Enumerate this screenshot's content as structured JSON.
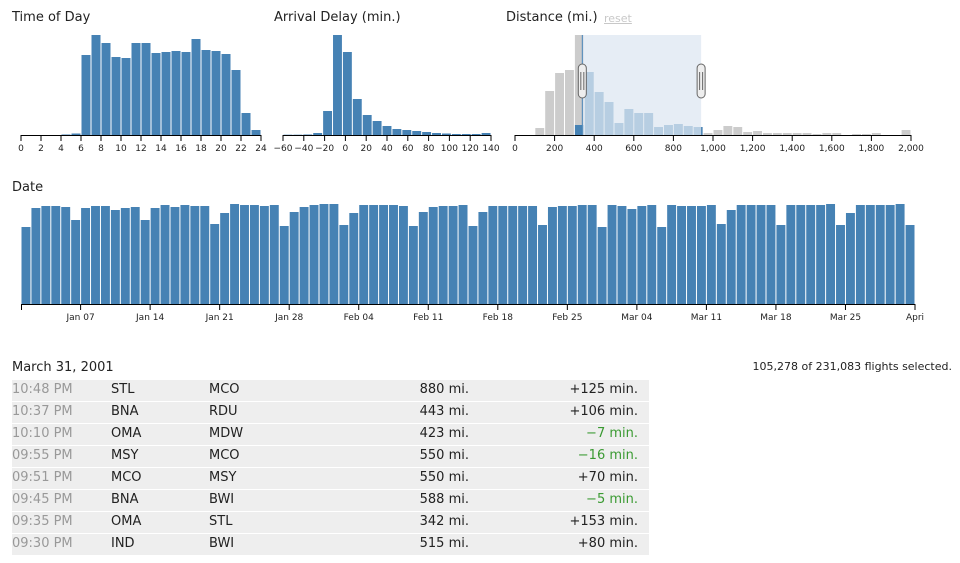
{
  "charts": {
    "time_of_day": {
      "title": "Time of Day"
    },
    "arrival_delay": {
      "title": "Arrival Delay (min.)"
    },
    "distance": {
      "title": "Distance (mi.)",
      "reset_label": "reset"
    },
    "date": {
      "title": "Date"
    }
  },
  "chart_data": [
    {
      "type": "bar",
      "title": "Time of Day",
      "x_range": [
        0,
        24
      ],
      "tick_labels": [
        "0",
        "2",
        "4",
        "6",
        "8",
        "10",
        "12",
        "14",
        "16",
        "18",
        "20",
        "22",
        "24"
      ],
      "bin_width": 1,
      "x": [
        0,
        1,
        2,
        3,
        4,
        5,
        6,
        7,
        8,
        9,
        10,
        11,
        12,
        13,
        14,
        15,
        16,
        17,
        18,
        19,
        20,
        21,
        22,
        23
      ],
      "values": [
        0,
        0,
        0,
        0,
        0.5,
        1.5,
        80,
        100,
        92,
        78,
        77,
        92,
        92,
        82,
        83,
        84,
        83,
        96,
        85,
        84,
        81,
        65,
        22,
        5
      ],
      "y_range": [
        0,
        100
      ],
      "grid": false
    },
    {
      "type": "bar",
      "title": "Arrival Delay (min.)",
      "x_range": [
        -60,
        150
      ],
      "tick_labels": [
        "−60",
        "−40",
        "−20",
        "0",
        "20",
        "40",
        "60",
        "80",
        "100",
        "120",
        "140"
      ],
      "bin_width": 10,
      "x": [
        -60,
        -50,
        -40,
        -30,
        -20,
        -10,
        0,
        10,
        20,
        30,
        40,
        50,
        60,
        70,
        80,
        90,
        100,
        110,
        120,
        130,
        140
      ],
      "values": [
        0.3,
        0.3,
        0.5,
        2,
        24,
        100,
        83,
        36,
        20,
        14,
        9,
        6,
        5,
        4,
        3,
        2,
        1.5,
        1,
        1,
        1,
        2
      ],
      "y_range": [
        0,
        100
      ],
      "grid": false
    },
    {
      "type": "bar",
      "title": "Distance (mi.)",
      "x_range": [
        0,
        2000
      ],
      "tick_labels": [
        "0",
        "200",
        "400",
        "600",
        "800",
        "1,000",
        "1,200",
        "1,400",
        "1,600",
        "1,800",
        "2,000"
      ],
      "bin_width": 50,
      "x": [
        0,
        50,
        100,
        150,
        200,
        250,
        300,
        350,
        400,
        450,
        500,
        550,
        600,
        650,
        700,
        750,
        800,
        850,
        900,
        950,
        1000,
        1050,
        1100,
        1150,
        1200,
        1250,
        1300,
        1350,
        1400,
        1450,
        1500,
        1550,
        1600,
        1650,
        1700,
        1750,
        1800,
        1850,
        1900,
        1950
      ],
      "values": [
        0,
        0,
        7,
        44,
        62,
        65,
        100,
        63,
        43,
        33,
        12,
        26,
        22,
        22,
        8,
        10,
        11,
        9,
        8,
        2,
        5,
        9,
        8,
        3,
        4,
        2,
        2,
        2,
        2,
        2,
        1,
        2,
        2,
        0,
        1,
        1,
        2,
        0,
        0,
        5
      ],
      "selected_values": [
        0,
        0,
        0,
        0,
        0,
        0,
        10,
        63,
        43,
        33,
        12,
        26,
        22,
        22,
        8,
        10,
        11,
        9,
        8,
        0,
        0,
        0,
        0,
        0,
        0,
        0,
        0,
        0,
        0,
        0,
        0,
        0,
        0,
        0,
        0,
        0,
        0,
        0,
        0,
        0
      ],
      "brush_range": [
        340,
        940
      ],
      "y_range": [
        0,
        100
      ],
      "grid": false
    },
    {
      "type": "bar",
      "title": "Date",
      "x_start": "2001-01-01",
      "x_range": [
        "2001-01-01",
        "2001-04-01"
      ],
      "tick_labels": [
        "Jan 07",
        "Jan 14",
        "Jan 21",
        "Jan 28",
        "Feb 04",
        "Feb 11",
        "Feb 18",
        "Feb 25",
        "Mar 04",
        "Mar 11",
        "Mar 18",
        "Mar 25",
        "Apri"
      ],
      "values": [
        77,
        96,
        98,
        98,
        97,
        84,
        96,
        98,
        98,
        94,
        96,
        97,
        84,
        96,
        99,
        97,
        99,
        98,
        98,
        80,
        91,
        100,
        99,
        99,
        98,
        99,
        78,
        92,
        97,
        99,
        100,
        100,
        79,
        91,
        99,
        99,
        99,
        99,
        98,
        78,
        92,
        97,
        98,
        98,
        99,
        78,
        92,
        98,
        98,
        98,
        98,
        98,
        79,
        97,
        98,
        98,
        99,
        99,
        77,
        99,
        98,
        95,
        98,
        99,
        77,
        99,
        98,
        98,
        98,
        99,
        80,
        94,
        99,
        99,
        99,
        99,
        79,
        99,
        99,
        99,
        99,
        100,
        79,
        91,
        99,
        99,
        99,
        99,
        100,
        79
      ],
      "y_range": [
        0,
        100
      ],
      "grid": false
    }
  ],
  "table": {
    "date_heading": "March 31, 2001",
    "selected_text": "105,278 of 231,083 flights selected.",
    "rows": [
      {
        "time": "10:48 PM",
        "origin": "STL",
        "destination": "MCO",
        "distance": "880 mi.",
        "delay": "+125 min.",
        "early": false
      },
      {
        "time": "10:37 PM",
        "origin": "BNA",
        "destination": "RDU",
        "distance": "443 mi.",
        "delay": "+106 min.",
        "early": false
      },
      {
        "time": "10:10 PM",
        "origin": "OMA",
        "destination": "MDW",
        "distance": "423 mi.",
        "delay": "−7 min.",
        "early": true
      },
      {
        "time": "09:55 PM",
        "origin": "MSY",
        "destination": "MCO",
        "distance": "550 mi.",
        "delay": "−16 min.",
        "early": true
      },
      {
        "time": "09:51 PM",
        "origin": "MCO",
        "destination": "MSY",
        "distance": "550 mi.",
        "delay": "+70 min.",
        "early": false
      },
      {
        "time": "09:45 PM",
        "origin": "BNA",
        "destination": "BWI",
        "distance": "588 mi.",
        "delay": "−5 min.",
        "early": true
      },
      {
        "time": "09:35 PM",
        "origin": "OMA",
        "destination": "STL",
        "distance": "342 mi.",
        "delay": "+153 min.",
        "early": false
      },
      {
        "time": "09:30 PM",
        "origin": "IND",
        "destination": "BWI",
        "distance": "515 mi.",
        "delay": "+80 min.",
        "early": false
      }
    ]
  },
  "colors": {
    "bar": "#4682b4",
    "bar_unselected": "#cccccc",
    "brush": "#dde7f1",
    "early": "#3a9a32"
  }
}
